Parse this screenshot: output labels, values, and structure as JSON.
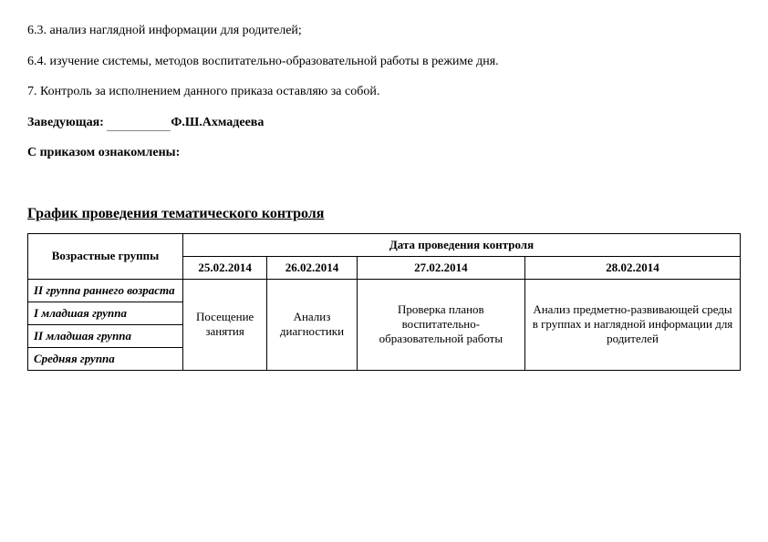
{
  "paragraphs": {
    "p1": "6.3. анализ наглядной информации для родителей;",
    "p2": "6.4. изучение системы, методов воспитательно-образовательной работы в режиме дня.",
    "p3": "7. Контроль за исполнением данного приказа оставляю за собой.",
    "p4_prefix": "Заведующая: ",
    "p4_name": "Ф.Ш.Ахмадеева",
    "p5": "С приказом ознакомлены:"
  },
  "heading": "График проведения тематического контроля",
  "table": {
    "header_col1": "Возрастные группы",
    "header_span": "Дата проведения контроля",
    "dates": [
      "25.02.2014",
      "26.02.2014",
      "27.02.2014",
      "28.02.2014"
    ],
    "row_labels": [
      "II группа раннего возраста",
      "I младшая группа",
      "II младшая группа",
      "Средняя группа"
    ],
    "col1_merged": "Посещение занятия",
    "col2_merged": "Анализ диагностики",
    "col3_merged": "Проверка планов воспитательно-образовательной работы",
    "col4_merged": "Анализ предметно-развивающей среды в группах и наглядной информации для родителей"
  },
  "style": {
    "col_widths": [
      "170px",
      "auto",
      "auto",
      "auto",
      "auto"
    ]
  }
}
